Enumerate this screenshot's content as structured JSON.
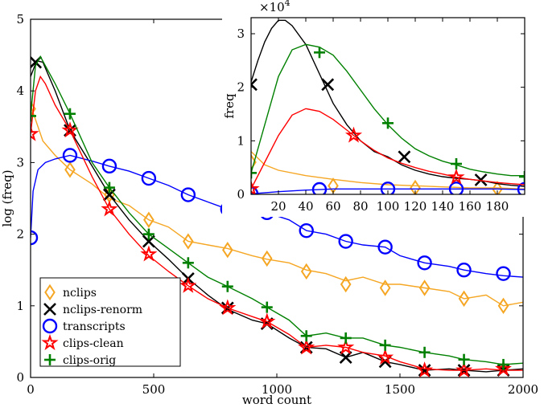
{
  "chart_data": [
    {
      "type": "line",
      "xlabel": "word count",
      "ylabel": "log (freq)",
      "xlim": [
        0,
        2000
      ],
      "ylim": [
        0,
        5
      ],
      "xticks": [
        0,
        500,
        1000,
        1500,
        2000
      ],
      "yticks": [
        0,
        1,
        2,
        3,
        4,
        5
      ],
      "grid": false,
      "legend_placement": "lower-left",
      "series": [
        {
          "name": "nclips",
          "color": "#f5a623",
          "marker": "diamond",
          "x": [
            0,
            50,
            100,
            160,
            250,
            320,
            400,
            480,
            560,
            640,
            720,
            800,
            900,
            960,
            1050,
            1120,
            1200,
            1280,
            1350,
            1440,
            1500,
            1600,
            1700,
            1760,
            1850,
            1920,
            2000
          ],
          "y": [
            3.8,
            3.3,
            3.1,
            2.9,
            2.7,
            2.5,
            2.4,
            2.2,
            2.1,
            1.9,
            1.85,
            1.8,
            1.7,
            1.65,
            1.6,
            1.5,
            1.45,
            1.35,
            1.4,
            1.3,
            1.3,
            1.25,
            1.2,
            1.1,
            1.15,
            1.0,
            1.05
          ],
          "markers_x": [
            0,
            160,
            320,
            480,
            640,
            800,
            960,
            1120,
            1280,
            1440,
            1600,
            1760,
            1920
          ],
          "markers_y": [
            3.75,
            2.9,
            2.55,
            2.2,
            1.9,
            1.78,
            1.66,
            1.48,
            1.3,
            1.25,
            1.25,
            1.1,
            1.0
          ]
        },
        {
          "name": "nclips-renorm",
          "color": "#000000",
          "marker": "x",
          "x": [
            0,
            25,
            50,
            100,
            160,
            250,
            320,
            400,
            480,
            560,
            640,
            720,
            800,
            900,
            960,
            1050,
            1120,
            1200,
            1280,
            1350,
            1440,
            1500,
            1600,
            1700,
            1760,
            1850,
            1920,
            2000
          ],
          "y": [
            4.2,
            4.42,
            4.4,
            4.0,
            3.45,
            2.95,
            2.55,
            2.2,
            1.9,
            1.65,
            1.38,
            1.15,
            0.95,
            0.8,
            0.75,
            0.55,
            0.42,
            0.4,
            0.28,
            0.35,
            0.22,
            0.18,
            0.1,
            0.12,
            0.1,
            0.08,
            0.1,
            0.12
          ],
          "markers_x": [
            20,
            160,
            320,
            480,
            640,
            800,
            960,
            1120,
            1280,
            1440,
            1600,
            1760,
            1920
          ],
          "markers_y": [
            4.4,
            3.45,
            2.55,
            1.9,
            1.38,
            0.97,
            0.75,
            0.42,
            0.28,
            0.22,
            0.1,
            0.1,
            0.1
          ]
        },
        {
          "name": "transcripts",
          "color": "#0000ff",
          "marker": "circle",
          "x": [
            0,
            10,
            30,
            60,
            100,
            160,
            250,
            320,
            400,
            480,
            560,
            640,
            720,
            800,
            900,
            960,
            1050,
            1120,
            1200,
            1280,
            1350,
            1440,
            1500,
            1600,
            1700,
            1760,
            1850,
            1920,
            2000
          ],
          "y": [
            1.95,
            2.6,
            2.9,
            3.0,
            3.05,
            3.1,
            3.02,
            2.95,
            2.88,
            2.78,
            2.68,
            2.55,
            2.45,
            2.35,
            2.3,
            2.3,
            2.2,
            2.05,
            2.0,
            1.9,
            1.85,
            1.82,
            1.7,
            1.6,
            1.55,
            1.5,
            1.45,
            1.42,
            1.4
          ],
          "markers_x": [
            0,
            160,
            320,
            480,
            640,
            800,
            960,
            1120,
            1280,
            1440,
            1600,
            1760,
            1920
          ],
          "markers_y": [
            1.95,
            3.1,
            2.95,
            2.78,
            2.55,
            2.35,
            2.3,
            2.05,
            1.9,
            1.82,
            1.6,
            1.5,
            1.45
          ]
        },
        {
          "name": "clips-clean",
          "color": "#ff0000",
          "marker": "star",
          "x": [
            0,
            20,
            40,
            60,
            100,
            160,
            250,
            320,
            400,
            480,
            560,
            640,
            720,
            800,
            900,
            960,
            1050,
            1120,
            1200,
            1280,
            1350,
            1440,
            1500,
            1600,
            1700,
            1760,
            1850,
            1920,
            2000
          ],
          "y": [
            3.4,
            4.0,
            4.2,
            4.1,
            3.8,
            3.45,
            2.8,
            2.35,
            2.0,
            1.7,
            1.48,
            1.28,
            1.1,
            0.97,
            0.85,
            0.78,
            0.6,
            0.42,
            0.45,
            0.42,
            0.35,
            0.3,
            0.22,
            0.12,
            0.1,
            0.1,
            0.12,
            0.1,
            0.1
          ],
          "markers_x": [
            0,
            160,
            320,
            480,
            640,
            800,
            960,
            1120,
            1280,
            1440,
            1600,
            1760,
            1920
          ],
          "markers_y": [
            3.4,
            3.45,
            2.35,
            1.72,
            1.28,
            0.97,
            0.78,
            0.42,
            0.42,
            0.28,
            0.1,
            0.1,
            0.12
          ]
        },
        {
          "name": "clips-orig",
          "color": "#008000",
          "marker": "plus",
          "x": [
            0,
            20,
            40,
            60,
            100,
            160,
            250,
            320,
            400,
            480,
            560,
            640,
            720,
            800,
            900,
            960,
            1050,
            1120,
            1200,
            1280,
            1350,
            1440,
            1500,
            1600,
            1700,
            1760,
            1850,
            1920,
            2000
          ],
          "y": [
            3.65,
            4.35,
            4.48,
            4.35,
            4.1,
            3.68,
            3.0,
            2.65,
            2.3,
            2.0,
            1.8,
            1.6,
            1.4,
            1.27,
            1.1,
            0.98,
            0.8,
            0.58,
            0.62,
            0.55,
            0.55,
            0.45,
            0.42,
            0.35,
            0.3,
            0.25,
            0.22,
            0.18,
            0.2
          ],
          "markers_x": [
            0,
            160,
            320,
            480,
            640,
            800,
            960,
            1120,
            1280,
            1440,
            1600,
            1760,
            1920
          ],
          "markers_y": [
            3.65,
            3.68,
            2.65,
            2.0,
            1.6,
            1.27,
            0.98,
            0.58,
            0.55,
            0.45,
            0.35,
            0.25,
            0.18
          ]
        }
      ]
    },
    {
      "type": "line",
      "xlabel": "",
      "ylabel": "freq",
      "exponent_label": "×10",
      "exponent_power": "4",
      "xlim": [
        0,
        200
      ],
      "ylim": [
        0,
        3.3
      ],
      "xticks": [
        20,
        40,
        60,
        80,
        100,
        120,
        140,
        160,
        180
      ],
      "yticks": [
        0,
        1,
        2,
        3
      ],
      "grid": false,
      "series": [
        {
          "name": "nclips",
          "color": "#f5a623",
          "marker": "diamond",
          "x": [
            0,
            10,
            20,
            40,
            60,
            80,
            100,
            120,
            140,
            160,
            180,
            200
          ],
          "y": [
            0.8,
            0.55,
            0.45,
            0.35,
            0.28,
            0.22,
            0.18,
            0.16,
            0.14,
            0.12,
            0.12,
            0.1
          ],
          "markers_x": [
            0,
            60,
            120,
            180
          ],
          "markers_y": [
            0.6,
            0.16,
            0.12,
            0.1
          ]
        },
        {
          "name": "nclips-renorm",
          "color": "#000000",
          "marker": "x",
          "x": [
            0,
            5,
            10,
            15,
            20,
            25,
            30,
            40,
            50,
            60,
            70,
            80,
            90,
            100,
            110,
            120,
            130,
            140,
            150,
            160,
            170,
            180,
            190,
            200
          ],
          "y": [
            2.1,
            2.5,
            2.85,
            3.1,
            3.25,
            3.25,
            3.15,
            2.8,
            2.25,
            1.7,
            1.3,
            1.0,
            0.8,
            0.7,
            0.55,
            0.45,
            0.38,
            0.33,
            0.3,
            0.28,
            0.25,
            0.2,
            0.17,
            0.15
          ],
          "markers_x": [
            0,
            56,
            112,
            168
          ],
          "markers_y": [
            2.05,
            2.05,
            0.7,
            0.27
          ]
        },
        {
          "name": "transcripts",
          "color": "#0000ff",
          "marker": "circle",
          "x": [
            0,
            20,
            40,
            60,
            80,
            100,
            120,
            140,
            160,
            180,
            200
          ],
          "y": [
            0.01,
            0.05,
            0.08,
            0.1,
            0.1,
            0.1,
            0.1,
            0.1,
            0.1,
            0.1,
            0.09
          ],
          "markers_x": [
            0,
            50,
            100,
            150,
            200
          ],
          "markers_y": [
            0.01,
            0.09,
            0.1,
            0.1,
            0.09
          ]
        },
        {
          "name": "clips-clean",
          "color": "#ff0000",
          "marker": "star",
          "x": [
            0,
            10,
            20,
            30,
            40,
            50,
            60,
            70,
            80,
            90,
            100,
            110,
            120,
            130,
            140,
            150,
            160,
            170,
            180,
            190,
            200
          ],
          "y": [
            0.1,
            0.6,
            1.1,
            1.48,
            1.6,
            1.55,
            1.4,
            1.2,
            1.0,
            0.82,
            0.68,
            0.58,
            0.5,
            0.43,
            0.38,
            0.32,
            0.28,
            0.25,
            0.22,
            0.2,
            0.18
          ],
          "markers_x": [
            0,
            75,
            150
          ],
          "markers_y": [
            0.1,
            1.1,
            0.32
          ]
        },
        {
          "name": "clips-orig",
          "color": "#008000",
          "marker": "plus",
          "x": [
            0,
            10,
            20,
            30,
            40,
            50,
            60,
            70,
            80,
            90,
            100,
            110,
            120,
            130,
            140,
            150,
            160,
            170,
            180,
            190,
            200
          ],
          "y": [
            0.4,
            1.3,
            2.2,
            2.7,
            2.8,
            2.75,
            2.6,
            2.3,
            1.95,
            1.6,
            1.3,
            1.05,
            0.85,
            0.72,
            0.62,
            0.55,
            0.47,
            0.42,
            0.38,
            0.35,
            0.35
          ],
          "markers_x": [
            0,
            50,
            100,
            150,
            200
          ],
          "markers_y": [
            0.4,
            2.65,
            1.33,
            0.57,
            0.33
          ]
        }
      ]
    }
  ]
}
